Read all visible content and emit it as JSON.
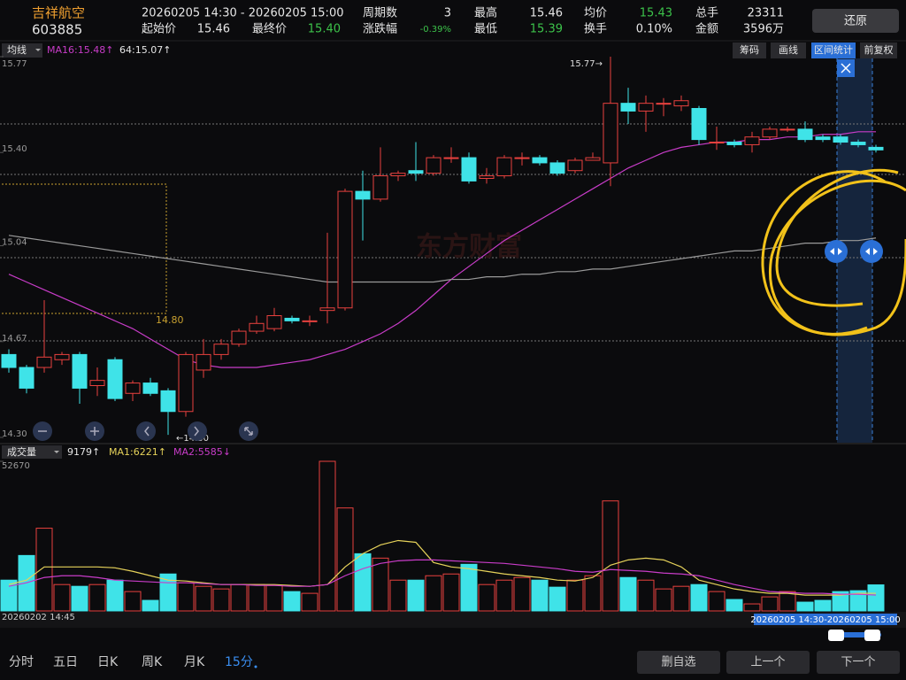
{
  "header": {
    "name": "吉祥航空",
    "code": "603885",
    "range": "20260205 14:30 - 20260205 15:00",
    "fields": [
      {
        "label": "起始价",
        "value": "15.46"
      },
      {
        "label": "最终价",
        "value": "15.40"
      },
      {
        "label": "周期数",
        "value": "3"
      },
      {
        "label": "涨跌幅",
        "value": "-0.39%"
      },
      {
        "label": "最高",
        "value": "15.46"
      },
      {
        "label": "最低",
        "value": "15.39"
      },
      {
        "label": "均价",
        "value": "15.43"
      },
      {
        "label": "换手",
        "value": "0.10%"
      },
      {
        "label": "总手",
        "value": "23311"
      },
      {
        "label": "金额",
        "value": "3596万"
      }
    ],
    "restore": "还原"
  },
  "toolbar": {
    "ma_selector": "均线",
    "ma_labels": [
      "MA16:15.48↑",
      "64:15.07↑"
    ],
    "buttons": [
      "筹码",
      "画线",
      "区间统计",
      "前复权"
    ]
  },
  "volume_bar": {
    "selector": "成交量",
    "labels": [
      "9179↑",
      "MA1:6221↑",
      "MA2:5585↓"
    ]
  },
  "watermark": "东方财富",
  "time_axis": {
    "start": "20260202 14:45",
    "selection": "20260205 14:30-20260205 15:00"
  },
  "tabs": [
    "分时",
    "五日",
    "日K",
    "周K",
    "月K",
    "15分"
  ],
  "actions": [
    "删自选",
    "上一个",
    "下一个"
  ],
  "chart_data": [
    {
      "type": "candlestick",
      "up_color": "#e8413e",
      "down_color": "#3fe3e8",
      "ylim": [
        14.3,
        15.77
      ],
      "yticks": [
        15.77,
        {
          "value": 15.4,
          "label": "15.40"
        },
        15.04,
        14.67,
        {
          "value": 14.3,
          "label": "14.30"
        }
      ],
      "open": [
        14.62,
        14.57,
        14.57,
        14.6,
        14.62,
        14.5,
        14.6,
        14.47,
        14.51,
        14.48,
        14.4,
        14.56,
        14.62,
        14.66,
        14.71,
        14.72,
        14.76,
        14.75,
        14.79,
        14.8,
        15.25,
        15.22,
        15.31,
        15.33,
        15.32,
        15.38,
        15.38,
        15.3,
        15.31,
        15.38,
        15.38,
        15.36,
        15.33,
        15.37,
        15.36,
        15.59,
        15.56,
        15.59,
        15.58,
        15.57,
        15.44,
        15.44,
        15.43,
        15.46,
        15.49,
        15.49,
        15.46,
        15.46,
        15.44,
        15.42
      ],
      "high": [
        14.64,
        14.58,
        14.83,
        14.63,
        14.63,
        14.57,
        14.61,
        14.52,
        14.53,
        14.49,
        14.63,
        14.68,
        14.68,
        14.72,
        14.77,
        14.8,
        14.77,
        14.77,
        15.09,
        15.26,
        15.33,
        15.42,
        15.33,
        15.44,
        15.39,
        15.42,
        15.4,
        15.34,
        15.39,
        15.4,
        15.39,
        15.37,
        15.38,
        15.4,
        15.77,
        15.65,
        15.62,
        15.61,
        15.62,
        15.58,
        15.5,
        15.45,
        15.48,
        15.5,
        15.5,
        15.52,
        15.47,
        15.47,
        15.45,
        15.43
      ],
      "low": [
        14.55,
        14.47,
        14.55,
        14.58,
        14.43,
        14.46,
        14.44,
        14.44,
        14.46,
        14.31,
        14.38,
        14.53,
        14.6,
        14.65,
        14.7,
        14.71,
        14.74,
        14.73,
        14.74,
        14.79,
        15.06,
        15.21,
        15.29,
        15.29,
        15.31,
        15.36,
        15.28,
        15.28,
        15.3,
        15.35,
        15.35,
        15.31,
        15.32,
        15.37,
        15.27,
        15.51,
        15.48,
        15.54,
        15.56,
        15.43,
        15.41,
        15.42,
        15.4,
        15.45,
        15.48,
        15.44,
        15.44,
        15.43,
        15.42,
        15.4
      ],
      "close": [
        14.57,
        14.49,
        14.61,
        14.62,
        14.49,
        14.52,
        14.45,
        14.51,
        14.47,
        14.4,
        14.62,
        14.62,
        14.66,
        14.71,
        14.74,
        14.77,
        14.75,
        14.75,
        14.8,
        15.25,
        15.22,
        15.31,
        15.32,
        15.32,
        15.38,
        15.38,
        15.29,
        15.31,
        15.38,
        15.38,
        15.36,
        15.32,
        15.37,
        15.38,
        15.59,
        15.56,
        15.59,
        15.59,
        15.6,
        15.45,
        15.44,
        15.43,
        15.46,
        15.49,
        15.49,
        15.45,
        15.45,
        15.44,
        15.43,
        15.41
      ],
      "lines": [
        {
          "name": "MA16",
          "color": "#c83cc8",
          "values": [
            14.93,
            14.9,
            14.87,
            14.84,
            14.81,
            14.78,
            14.75,
            14.72,
            14.68,
            14.64,
            14.6,
            14.58,
            14.57,
            14.57,
            14.57,
            14.58,
            14.59,
            14.6,
            14.62,
            14.64,
            14.67,
            14.7,
            14.74,
            14.79,
            14.85,
            14.91,
            14.96,
            15.01,
            15.06,
            15.1,
            15.14,
            15.18,
            15.22,
            15.26,
            15.3,
            15.34,
            15.37,
            15.4,
            15.42,
            15.43,
            15.44,
            15.44,
            15.45,
            15.45,
            15.46,
            15.46,
            15.47,
            15.47,
            15.48,
            15.48
          ]
        },
        {
          "name": "MA64",
          "color": "#9a9a9a",
          "values": [
            15.08,
            15.07,
            15.06,
            15.05,
            15.04,
            15.03,
            15.02,
            15.01,
            15.0,
            14.99,
            14.98,
            14.97,
            14.96,
            14.95,
            14.94,
            14.93,
            14.92,
            14.91,
            14.9,
            14.9,
            14.9,
            14.9,
            14.9,
            14.9,
            14.9,
            14.91,
            14.91,
            14.92,
            14.92,
            14.93,
            14.93,
            14.94,
            14.94,
            14.95,
            14.95,
            14.96,
            14.97,
            14.98,
            14.99,
            15.0,
            15.01,
            15.02,
            15.02,
            15.03,
            15.04,
            15.05,
            15.05,
            15.06,
            15.06,
            15.07
          ]
        }
      ],
      "annotations": [
        "15.77→",
        "←14.30",
        "14.80"
      ]
    },
    {
      "type": "volume",
      "ylim": [
        0,
        52670
      ],
      "yticks": [
        52670
      ],
      "values": [
        10840,
        19520,
        29120,
        9290,
        8670,
        9290,
        10840,
        6820,
        3720,
        13010,
        9910,
        8670,
        7750,
        9290,
        9290,
        8980,
        6820,
        6200,
        52670,
        36250,
        20140,
        18590,
        10840,
        10840,
        12390,
        13010,
        16420,
        9290,
        10840,
        11770,
        10840,
        8370,
        10840,
        12390,
        38730,
        11770,
        10840,
        7750,
        8670,
        9290,
        6820,
        4030,
        2480,
        4960,
        6820,
        3100,
        3720,
        6820,
        7130,
        9179
      ],
      "lines": [
        {
          "name": "MA1",
          "color": "#e6d25a",
          "values": [
            9294,
            10843,
            15490,
            15490,
            15490,
            15490,
            15180,
            13941,
            12392,
            10843,
            10533,
            9914,
            9294,
            9294,
            9294,
            9294,
            8984,
            8674,
            9294,
            15490,
            20137,
            23235,
            24784,
            24164,
            17039,
            15490,
            14870,
            13941,
            13012,
            12392,
            11772,
            10843,
            10533,
            11772,
            16110,
            17968,
            18588,
            17968,
            15490,
            10843,
            9294,
            7745,
            6816,
            6196,
            6196,
            5576,
            5576,
            5576,
            6196,
            6221
          ]
        },
        {
          "name": "MA2",
          "color": "#c83cc8",
          "values": [
            8674,
            9914,
            11772,
            12392,
            12392,
            11772,
            10843,
            10533,
            10223,
            9914,
            9914,
            9604,
            9294,
            9294,
            8984,
            8984,
            8674,
            8674,
            9294,
            12392,
            14870,
            16729,
            17659,
            17968,
            17968,
            17659,
            17349,
            17039,
            16729,
            16110,
            15490,
            14870,
            13941,
            13631,
            14561,
            14251,
            13941,
            13321,
            13012,
            12392,
            10843,
            9294,
            8055,
            6816,
            6506,
            6196,
            6196,
            5886,
            5886,
            5585
          ]
        }
      ]
    }
  ]
}
